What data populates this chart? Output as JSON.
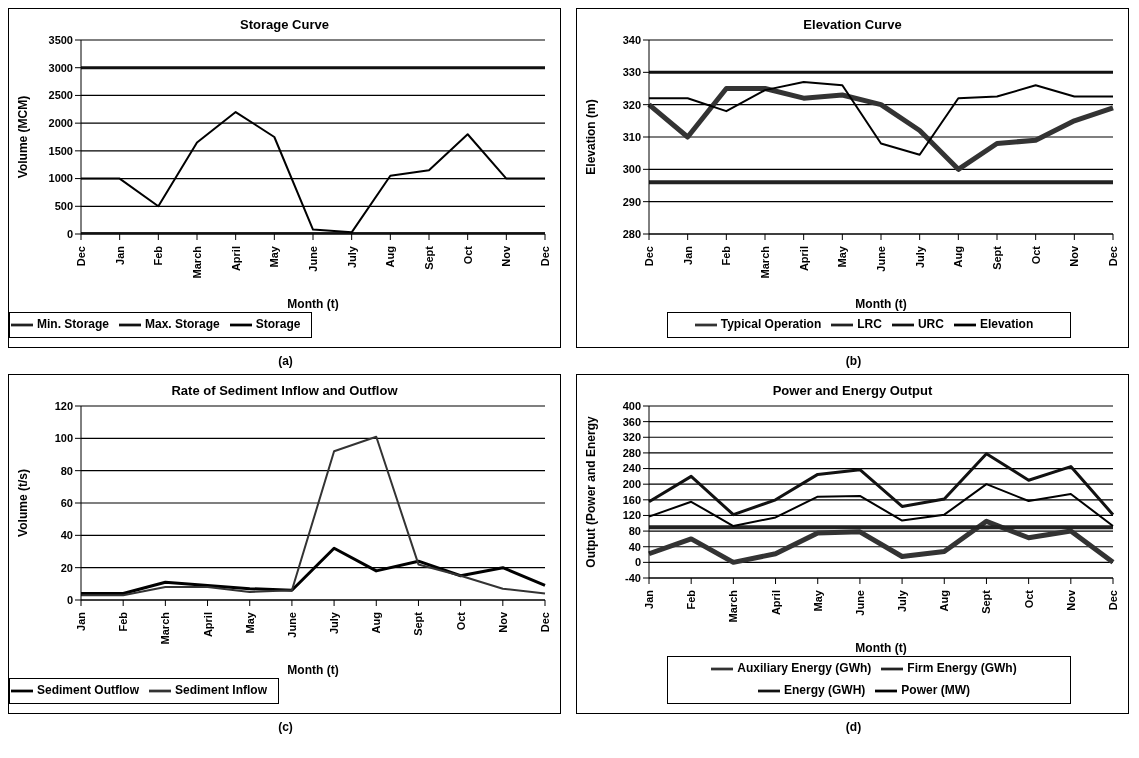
{
  "chart_data": [
    {
      "type": "line",
      "title": "Storage Curve",
      "xlabel": "Month (t)",
      "ylabel": "Volume (MCM)",
      "categories": [
        "Dec",
        "Jan",
        "Feb",
        "March",
        "April",
        "May",
        "June",
        "July",
        "Aug",
        "Sept",
        "Oct",
        "Nov",
        "Dec"
      ],
      "ylim": [
        0,
        3500
      ],
      "yticks": [
        0,
        500,
        1000,
        1500,
        2000,
        2500,
        3000,
        3500
      ],
      "grid": "y",
      "legend": "bottom",
      "marker": "none",
      "annotations": [
        "(a)"
      ],
      "series": [
        {
          "name": "Storage",
          "color": "#000000",
          "values": [
            1000,
            1000,
            500,
            1650,
            2200,
            1750,
            80,
            30,
            1050,
            1150,
            1800,
            1000,
            1000
          ]
        },
        {
          "name": "Max. Storage",
          "color": "#111111",
          "values": [
            3000,
            3000,
            3000,
            3000,
            3000,
            3000,
            3000,
            3000,
            3000,
            3000,
            3000,
            3000,
            3000
          ]
        },
        {
          "name": "Min. Storage",
          "color": "#222222",
          "values": [
            0,
            0,
            0,
            0,
            0,
            0,
            0,
            0,
            0,
            0,
            0,
            0,
            0
          ]
        }
      ]
    },
    {
      "type": "line",
      "title": "Elevation Curve",
      "xlabel": "Month (t)",
      "ylabel": "Elevation (m)",
      "categories": [
        "Dec",
        "Jan",
        "Feb",
        "March",
        "April",
        "May",
        "June",
        "July",
        "Aug",
        "Sept",
        "Oct",
        "Nov",
        "Dec"
      ],
      "ylim": [
        280,
        340
      ],
      "yticks": [
        280,
        290,
        300,
        310,
        320,
        330,
        340
      ],
      "grid": "y",
      "legend": "bottom",
      "marker": "none",
      "annotations": [
        "(b)"
      ],
      "series": [
        {
          "name": "Elevation",
          "color": "#000000",
          "values": [
            322,
            322,
            318,
            324.5,
            327,
            326,
            308,
            304.5,
            322,
            322.5,
            326,
            322.5,
            322.5
          ]
        },
        {
          "name": "URC",
          "color": "#111111",
          "values": [
            330,
            330,
            330,
            330,
            330,
            330,
            330,
            330,
            330,
            330,
            330,
            330,
            330
          ]
        },
        {
          "name": "LRC",
          "color": "#222222",
          "values": [
            296,
            296,
            296,
            296,
            296,
            296,
            296,
            296,
            296,
            296,
            296,
            296,
            296
          ]
        },
        {
          "name": "Typical Operation",
          "color": "#333333",
          "values": [
            320,
            310,
            325,
            325,
            322,
            323,
            320,
            312,
            300,
            308,
            309,
            315,
            319
          ]
        }
      ]
    },
    {
      "type": "line",
      "title": "Rate of Sediment Inflow and Outflow",
      "xlabel": "Month (t)",
      "ylabel": "Volume (t/s)",
      "categories": [
        "Jan",
        "Feb",
        "March",
        "April",
        "May",
        "June",
        "July",
        "Aug",
        "Sept",
        "Oct",
        "Nov",
        "Dec"
      ],
      "ylim": [
        0,
        120
      ],
      "yticks": [
        0,
        20,
        40,
        60,
        80,
        100,
        120
      ],
      "grid": "y",
      "legend": "bottom",
      "marker": "none",
      "annotations": [
        "(c)"
      ],
      "series": [
        {
          "name": "Sediment Inflow",
          "color": "#333333",
          "values": [
            3,
            3,
            8,
            8,
            5,
            6,
            92,
            101,
            22,
            15,
            7,
            4
          ]
        },
        {
          "name": "Sediment Outflow",
          "color": "#000000",
          "values": [
            4,
            4,
            11,
            9,
            7,
            6,
            32,
            18,
            24,
            15,
            20,
            9
          ]
        }
      ]
    },
    {
      "type": "line",
      "title": "Power and Energy Output",
      "xlabel": "Month (t)",
      "ylabel": "Output (Power and Energy",
      "categories": [
        "Jan",
        "Feb",
        "March",
        "April",
        "May",
        "June",
        "July",
        "Aug",
        "Sept",
        "Oct",
        "Nov",
        "Dec"
      ],
      "ylim": [
        -40,
        400
      ],
      "yticks": [
        -40,
        0,
        40,
        80,
        120,
        160,
        200,
        240,
        280,
        320,
        360,
        400
      ],
      "grid": "y",
      "legend": "bottom",
      "marker": "none",
      "annotations": [
        "(d)"
      ],
      "series": [
        {
          "name": "Power (MW)",
          "color": "#000000",
          "values": [
            117,
            155,
            93,
            115,
            168,
            170,
            107,
            122,
            200,
            157,
            175,
            93
          ]
        },
        {
          "name": "Energy (GWH)",
          "color": "#111111",
          "values": [
            155,
            220,
            122,
            160,
            225,
            237,
            143,
            162,
            278,
            210,
            245,
            122
          ]
        },
        {
          "name": "Firm Energy (GWh)",
          "color": "#222222",
          "values": [
            90,
            90,
            90,
            90,
            90,
            90,
            90,
            90,
            90,
            90,
            90,
            90
          ]
        },
        {
          "name": "Auxiliary Energy (GWh)",
          "color": "#333333",
          "values": [
            22,
            60,
            0,
            22,
            75,
            78,
            15,
            28,
            105,
            63,
            80,
            0
          ]
        }
      ]
    }
  ]
}
